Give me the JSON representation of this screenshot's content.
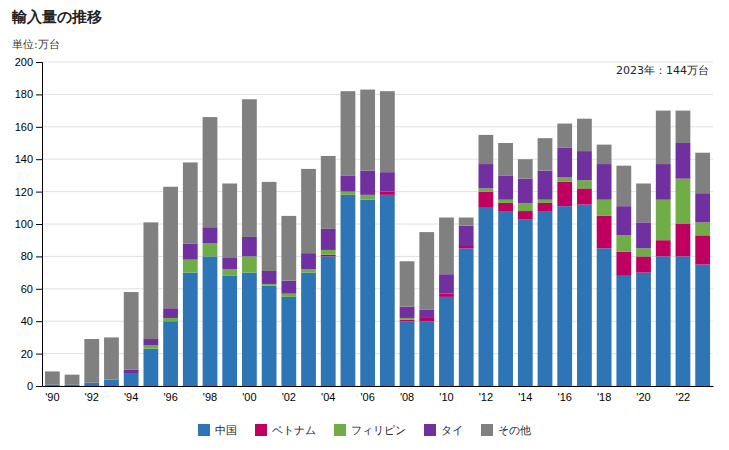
{
  "chart_data": {
    "type": "bar",
    "stacked": true,
    "title": "輸入量の推移",
    "ylabel": "単位:万台",
    "annotation": "2023年：144万台",
    "categories": [
      "'90",
      null,
      "'92",
      null,
      "'94",
      null,
      "'96",
      null,
      "'98",
      null,
      "'00",
      null,
      "'02",
      null,
      "'04",
      null,
      "'06",
      null,
      "'08",
      null,
      "'10",
      null,
      "'12",
      null,
      "'14",
      null,
      "'16",
      null,
      "'18",
      null,
      "'20",
      null,
      "'22",
      null
    ],
    "series": [
      {
        "name": "中国",
        "color": "#2E75B6",
        "values": [
          1,
          1,
          2,
          4,
          8,
          23,
          40,
          70,
          80,
          68,
          70,
          62,
          55,
          70,
          80,
          118,
          115,
          118,
          40,
          40,
          55,
          85,
          110,
          108,
          103,
          108,
          111,
          112,
          85,
          68,
          70,
          80,
          80,
          75
        ]
      },
      {
        "name": "ベトナム",
        "color": "#C00060",
        "values": [
          0,
          0,
          0,
          0,
          0,
          0,
          0,
          0,
          0,
          0,
          0,
          0,
          0,
          0,
          1,
          0,
          0,
          2,
          1,
          2,
          2,
          2,
          10,
          5,
          5,
          5,
          15,
          10,
          20,
          15,
          10,
          10,
          20,
          18
        ]
      },
      {
        "name": "フィリピン",
        "color": "#70AD47",
        "values": [
          0,
          0,
          0,
          0,
          0,
          2,
          2,
          8,
          8,
          4,
          10,
          1,
          2,
          2,
          3,
          2,
          3,
          0,
          1,
          0,
          0,
          0,
          2,
          2,
          5,
          2,
          3,
          5,
          10,
          10,
          5,
          25,
          28,
          8
        ]
      },
      {
        "name": "タイ",
        "color": "#7030A0",
        "values": [
          0,
          0,
          0,
          0,
          2,
          4,
          6,
          10,
          10,
          7,
          12,
          8,
          8,
          10,
          13,
          10,
          15,
          12,
          7,
          5,
          12,
          12,
          15,
          15,
          15,
          18,
          18,
          18,
          22,
          18,
          16,
          22,
          22,
          18
        ]
      },
      {
        "name": "その他",
        "color": "#808080",
        "values": [
          8,
          6,
          27,
          26,
          48,
          72,
          75,
          50,
          68,
          46,
          85,
          55,
          40,
          52,
          45,
          52,
          50,
          50,
          28,
          48,
          35,
          5,
          18,
          20,
          12,
          20,
          15,
          20,
          12,
          25,
          24,
          33,
          20,
          25
        ]
      }
    ],
    "ylim": [
      0,
      200
    ],
    "yticks": [
      0,
      20,
      40,
      60,
      80,
      100,
      120,
      140,
      160,
      180,
      200
    ],
    "grid": true,
    "legend": "bottom"
  }
}
